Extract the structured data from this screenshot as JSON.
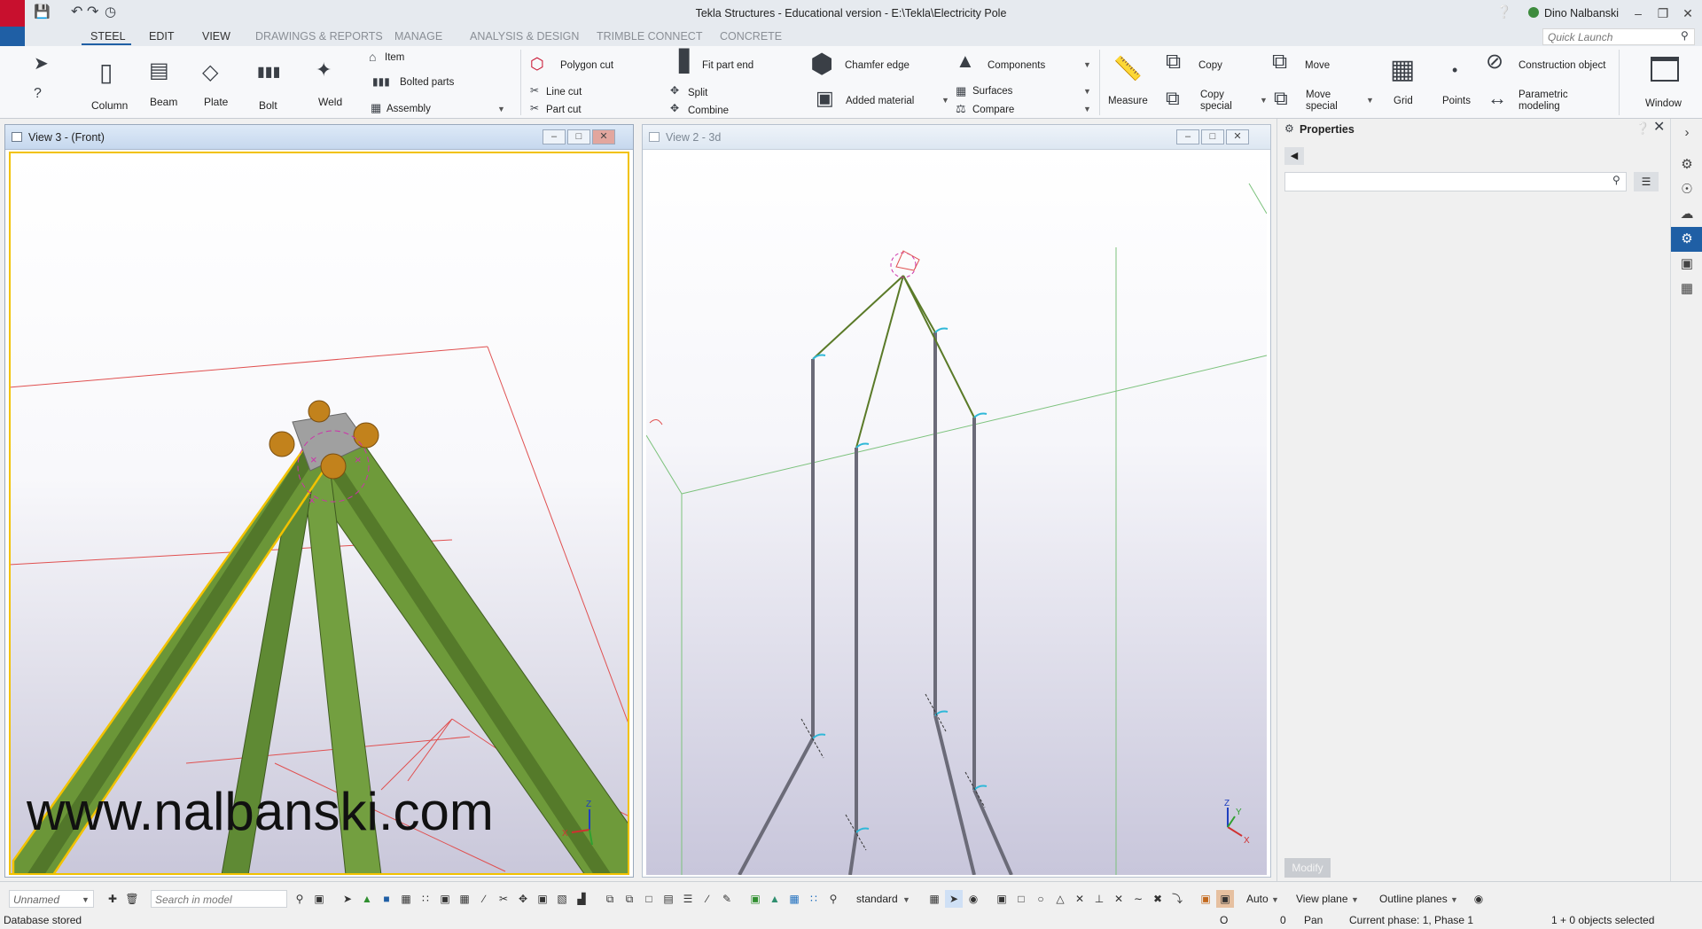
{
  "app": {
    "title": "Tekla Structures - Educational version - E:\\Tekla\\Electricity Pole",
    "user": "Dino Nalbanski",
    "quick_launch_placeholder": "Quick Launch"
  },
  "tabs": [
    {
      "label": "STEEL",
      "active": true
    },
    {
      "label": "EDIT"
    },
    {
      "label": "VIEW"
    },
    {
      "label": "DRAWINGS & REPORTS"
    },
    {
      "label": "MANAGE"
    },
    {
      "label": "ANALYSIS & DESIGN"
    },
    {
      "label": "TRIMBLE CONNECT"
    },
    {
      "label": "CONCRETE"
    }
  ],
  "ribbon": {
    "column": "Column",
    "beam": "Beam",
    "plate": "Plate",
    "bolt": "Bolt",
    "weld": "Weld",
    "item": "Item",
    "bolted_parts": "Bolted parts",
    "assembly": "Assembly",
    "polygon_cut": "Polygon cut",
    "line_cut": "Line cut",
    "part_cut": "Part cut",
    "fit_part_end": "Fit part end",
    "split": "Split",
    "combine": "Combine",
    "chamfer_edge": "Chamfer edge",
    "added_material": "Added material",
    "components": "Components",
    "surfaces": "Surfaces",
    "compare": "Compare",
    "measure": "Measure",
    "copy": "Copy",
    "copy_special_1": "Copy",
    "copy_special_2": "special",
    "move": "Move",
    "move_special_1": "Move",
    "move_special_2": "special",
    "grid": "Grid",
    "points": "Points",
    "construction_object": "Construction object",
    "parametric_1": "Parametric",
    "parametric_2": "modeling",
    "window": "Window"
  },
  "views": {
    "view3_title": "View 3 - (Front)",
    "view2_title": "View 2 - 3d",
    "watermark": "www.nalbanski.com"
  },
  "properties": {
    "title": "Properties",
    "modify": "Modify"
  },
  "status": {
    "filter": "Unnamed",
    "search_placeholder": "Search in model",
    "standard": "standard",
    "auto": "Auto",
    "view_plane": "View plane",
    "outline_planes": "Outline planes",
    "db_stored": "Database stored",
    "o_label": "O",
    "zero": "0",
    "pan": "Pan",
    "phase": "Current phase: 1, Phase 1",
    "selected": "1 + 0 objects selected"
  },
  "colors": {
    "accent": "#1f5fa5",
    "selection": "#f2c200",
    "member_green": "#6e9a3a"
  }
}
